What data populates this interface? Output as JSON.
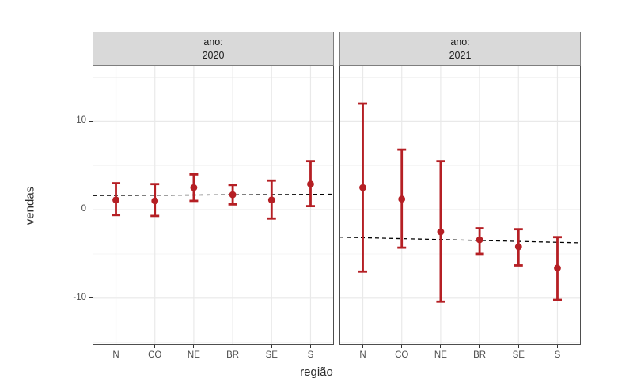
{
  "chart_data": {
    "type": "pointrange",
    "title": "",
    "xlabel": "região",
    "ylabel": "vendas",
    "facet_variable": "ano",
    "categories": [
      "N",
      "CO",
      "NE",
      "BR",
      "SE",
      "S"
    ],
    "y_axis": {
      "major_ticks": [
        10,
        0,
        -10
      ],
      "minor_gridlines": [
        15,
        5,
        -5,
        -15
      ],
      "range": [
        -15.3,
        16.3
      ]
    },
    "grid": true,
    "legend": "none",
    "facets": [
      {
        "strip": {
          "line1": "ano:",
          "line2": "2020"
        },
        "series": [
          {
            "category": "N",
            "y": 1.1,
            "ymin": -0.6,
            "ymax": 3.0
          },
          {
            "category": "CO",
            "y": 1.0,
            "ymin": -0.7,
            "ymax": 2.9
          },
          {
            "category": "NE",
            "y": 2.5,
            "ymin": 1.0,
            "ymax": 4.0
          },
          {
            "category": "BR",
            "y": 1.7,
            "ymin": 0.6,
            "ymax": 2.8
          },
          {
            "category": "SE",
            "y": 1.1,
            "ymin": -1.0,
            "ymax": 3.3
          },
          {
            "category": "S",
            "y": 2.9,
            "ymin": 0.4,
            "ymax": 5.5
          }
        ],
        "dashed_line": {
          "y_start": 1.6,
          "y_end": 1.75
        }
      },
      {
        "strip": {
          "line1": "ano:",
          "line2": "2021"
        },
        "series": [
          {
            "category": "N",
            "y": 2.5,
            "ymin": -7.0,
            "ymax": 12.0
          },
          {
            "category": "CO",
            "y": 1.2,
            "ymin": -4.3,
            "ymax": 6.8
          },
          {
            "category": "NE",
            "y": -2.5,
            "ymin": -10.4,
            "ymax": 5.5
          },
          {
            "category": "BR",
            "y": -3.4,
            "ymin": -5.0,
            "ymax": -2.1
          },
          {
            "category": "SE",
            "y": -4.2,
            "ymin": -6.3,
            "ymax": -2.2
          },
          {
            "category": "S",
            "y": -6.6,
            "ymin": -10.2,
            "ymax": -3.1
          }
        ],
        "dashed_line": {
          "y_start": -3.1,
          "y_end": -3.75
        }
      }
    ],
    "colors": {
      "point": "#B51F24",
      "dashed_line": "#000000",
      "strip_fill": "#D9D9D9",
      "strip_border": "#7E7E7E",
      "panel_border": "#4E4E4E",
      "grid_major": "#E9E9E9",
      "grid_minor": "#F4F4F4",
      "axis_text": "#4D4D4D",
      "axis_title": "#2B2B2B"
    }
  }
}
